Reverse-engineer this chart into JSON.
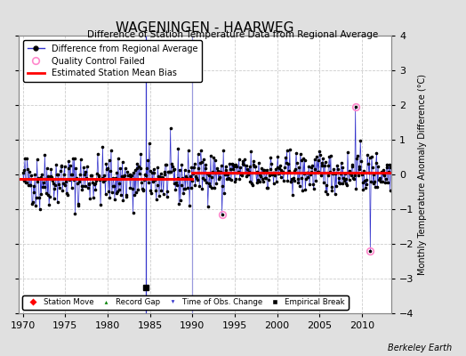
{
  "title": "WAGENINGEN - HAARWEG",
  "subtitle": "Difference of Station Temperature Data from Regional Average",
  "ylabel": "Monthly Temperature Anomaly Difference (°C)",
  "xlim": [
    1969.5,
    2013.5
  ],
  "ylim": [
    -4,
    4
  ],
  "yticks": [
    -4,
    -3,
    -2,
    -1,
    0,
    1,
    2,
    3,
    4
  ],
  "ytick_labels_right": [
    "-4",
    "-3",
    "-2",
    "-1",
    "0",
    "1",
    "2",
    "3",
    "4"
  ],
  "xticks": [
    1970,
    1975,
    1980,
    1985,
    1990,
    1995,
    2000,
    2005,
    2010
  ],
  "bias_before_break": -0.13,
  "bias_after_break": 0.05,
  "break_x": 1990.0,
  "vert_line1_x": 1984.5,
  "vert_line2_x": 1990.0,
  "empirical_break_x": 1984.5,
  "empirical_break_y": -3.25,
  "qc_points": [
    [
      1993.5,
      -1.15
    ],
    [
      2009.3,
      1.95
    ],
    [
      2011.0,
      -2.2
    ]
  ],
  "background_color": "#e0e0e0",
  "plot_bg_color": "#ffffff",
  "grid_color": "#cccccc",
  "line_color": "#3333cc",
  "vert_line1_color": "#3333cc",
  "vert_line2_color": "#9999dd",
  "bias_color": "red",
  "qc_color": "#ff88cc",
  "seed": 42,
  "start_year": 1970.0,
  "end_year": 2013.5
}
